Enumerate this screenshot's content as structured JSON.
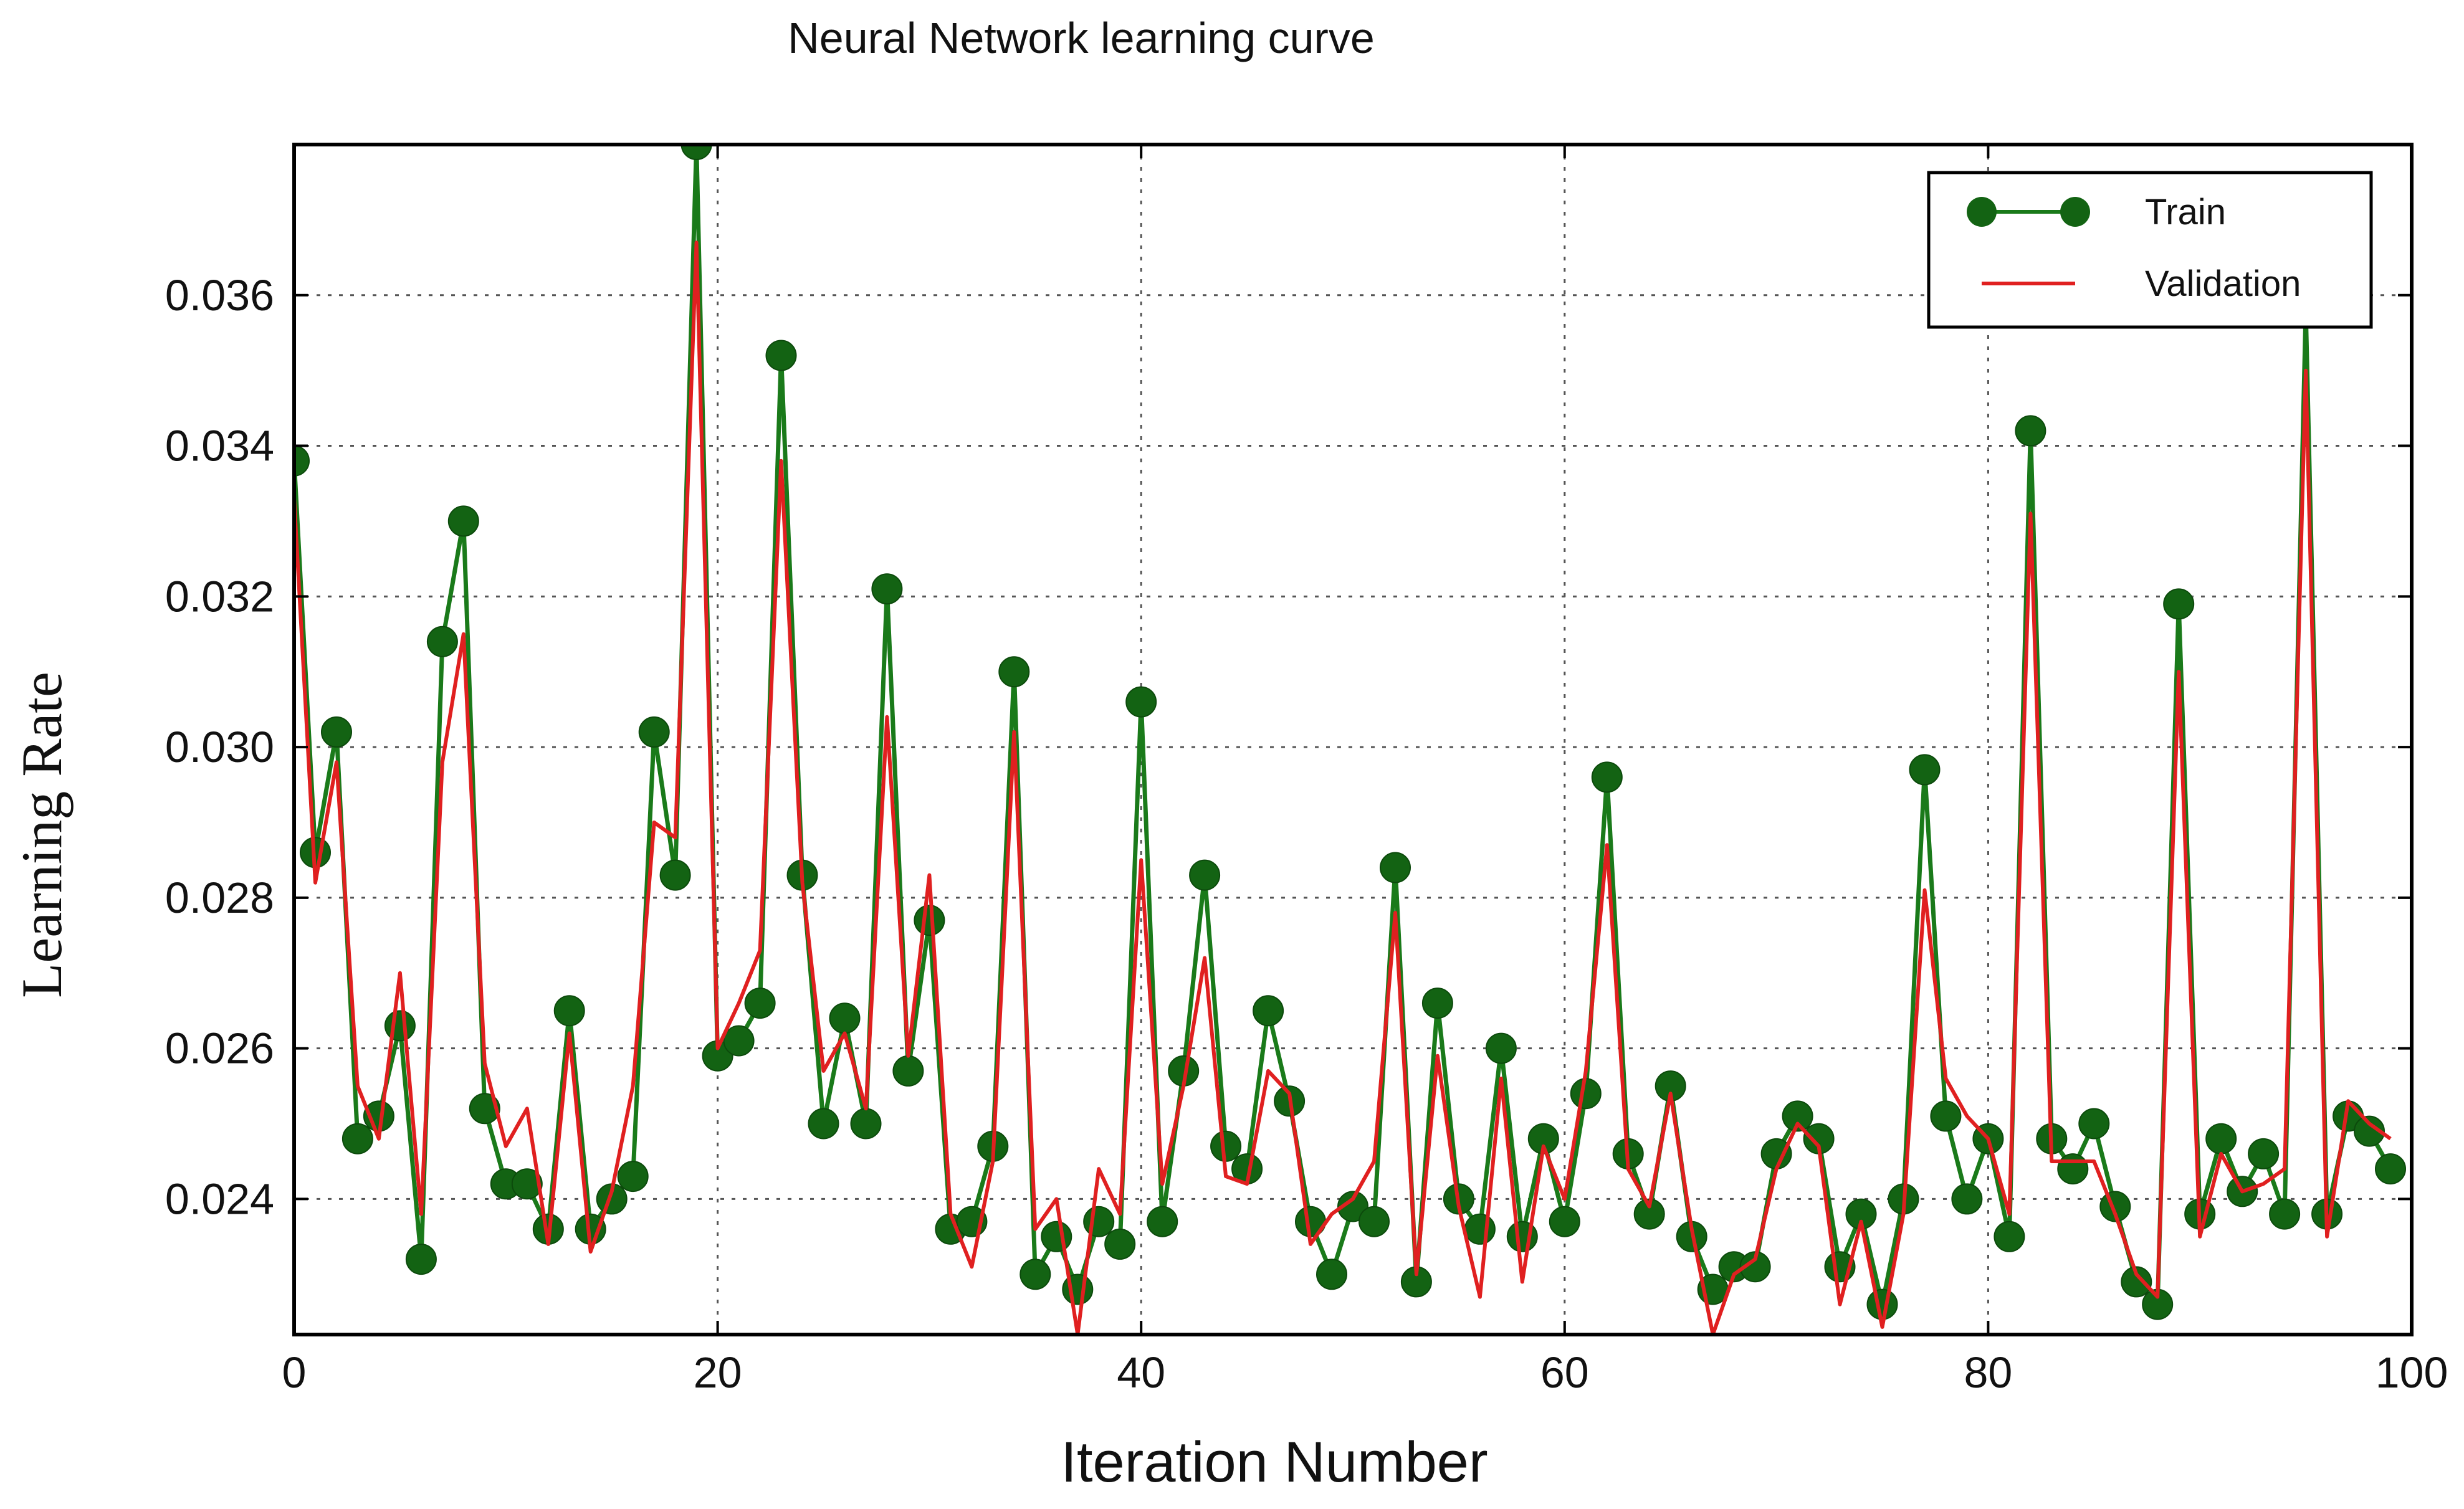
{
  "chart_data": {
    "type": "line",
    "title": "Neural Network learning curve",
    "xlabel": "Iteration  Number",
    "ylabel": "Learning Rate",
    "xlim": [
      0,
      100
    ],
    "ylim": [
      0.0222,
      0.038
    ],
    "xticks": [
      0,
      20,
      40,
      60,
      80,
      100
    ],
    "xtick_labels": [
      "0",
      "20",
      "40",
      "60",
      "80",
      "100"
    ],
    "yticks": [
      0.024,
      0.026,
      0.028,
      0.03,
      0.032,
      0.034,
      0.036
    ],
    "ytick_labels": [
      "0.024",
      "0.026",
      "0.028",
      "0.030",
      "0.032",
      "0.034",
      "0.036"
    ],
    "grid": true,
    "legend_position": "top-right",
    "x": [
      0,
      1,
      2,
      3,
      4,
      5,
      6,
      7,
      8,
      9,
      10,
      11,
      12,
      13,
      14,
      15,
      16,
      17,
      18,
      19,
      20,
      21,
      22,
      23,
      24,
      25,
      26,
      27,
      28,
      29,
      30,
      31,
      32,
      33,
      34,
      35,
      36,
      37,
      38,
      39,
      40,
      41,
      42,
      43,
      44,
      45,
      46,
      47,
      48,
      49,
      50,
      51,
      52,
      53,
      54,
      55,
      56,
      57,
      58,
      59,
      60,
      61,
      62,
      63,
      64,
      65,
      66,
      67,
      68,
      69,
      70,
      71,
      72,
      73,
      74,
      75,
      76,
      77,
      78,
      79,
      80,
      81,
      82,
      83,
      84,
      85,
      86,
      87,
      88,
      89,
      90,
      91,
      92,
      93,
      94,
      95,
      96,
      97,
      98,
      99
    ],
    "series": [
      {
        "name": "Train",
        "color": "#1a7a1a",
        "marker_color": "#136313",
        "values": [
          0.0338,
          0.0286,
          0.0302,
          0.0248,
          0.0251,
          0.0263,
          0.0232,
          0.0314,
          0.033,
          0.0252,
          0.0242,
          0.0242,
          0.0236,
          0.0265,
          0.0236,
          0.024,
          0.0243,
          0.0302,
          0.0283,
          0.038,
          0.0259,
          0.0261,
          0.0266,
          0.0352,
          0.0283,
          0.025,
          0.0264,
          0.025,
          0.0321,
          0.0257,
          0.0277,
          0.0236,
          0.0237,
          0.0247,
          0.031,
          0.023,
          0.0235,
          0.0228,
          0.0237,
          0.0234,
          0.0306,
          0.0237,
          0.0257,
          0.0283,
          0.0247,
          0.0244,
          0.0265,
          0.0253,
          0.0237,
          0.023,
          0.0239,
          0.0237,
          0.0284,
          0.0229,
          0.0266,
          0.024,
          0.0236,
          0.026,
          0.0235,
          0.0248,
          0.0237,
          0.0254,
          0.0296,
          0.0246,
          0.0238,
          0.0255,
          0.0235,
          0.0228,
          0.0231,
          0.0231,
          0.0246,
          0.0251,
          0.0248,
          0.0231,
          0.0238,
          0.0226,
          0.024,
          0.0297,
          0.0251,
          0.024,
          0.0248,
          0.0235,
          0.0342,
          0.0248,
          0.0244,
          0.025,
          0.0239,
          0.0229,
          0.0226,
          0.0319,
          0.0238,
          0.0248,
          0.0241,
          0.0246,
          0.0238,
          0.0358,
          0.0238,
          0.0251,
          0.0249,
          0.0244
        ]
      },
      {
        "name": "Validation",
        "color": "#e02020",
        "values": [
          0.0333,
          0.0282,
          0.0298,
          0.0255,
          0.0248,
          0.027,
          0.0238,
          0.0298,
          0.0315,
          0.0258,
          0.0247,
          0.0252,
          0.0234,
          0.0262,
          0.0233,
          0.0241,
          0.0255,
          0.029,
          0.0288,
          0.0367,
          0.026,
          0.0266,
          0.0273,
          0.0338,
          0.0282,
          0.0257,
          0.0262,
          0.0252,
          0.0304,
          0.0259,
          0.0283,
          0.0238,
          0.0231,
          0.0245,
          0.0302,
          0.0236,
          0.024,
          0.0222,
          0.0244,
          0.0238,
          0.0285,
          0.0242,
          0.0255,
          0.0272,
          0.0243,
          0.0242,
          0.0257,
          0.0254,
          0.0234,
          0.0238,
          0.024,
          0.0245,
          0.0278,
          0.023,
          0.0259,
          0.0239,
          0.0227,
          0.0256,
          0.0229,
          0.0247,
          0.024,
          0.0257,
          0.0287,
          0.0244,
          0.0239,
          0.0254,
          0.0236,
          0.0222,
          0.023,
          0.0232,
          0.0244,
          0.025,
          0.0247,
          0.0226,
          0.0237,
          0.0223,
          0.0238,
          0.0281,
          0.0256,
          0.0251,
          0.0248,
          0.0238,
          0.0331,
          0.0245,
          0.0245,
          0.0245,
          0.0238,
          0.023,
          0.0227,
          0.031,
          0.0235,
          0.0246,
          0.0241,
          0.0242,
          0.0244,
          0.035,
          0.0235,
          0.0253,
          0.025,
          0.0248
        ]
      }
    ]
  }
}
